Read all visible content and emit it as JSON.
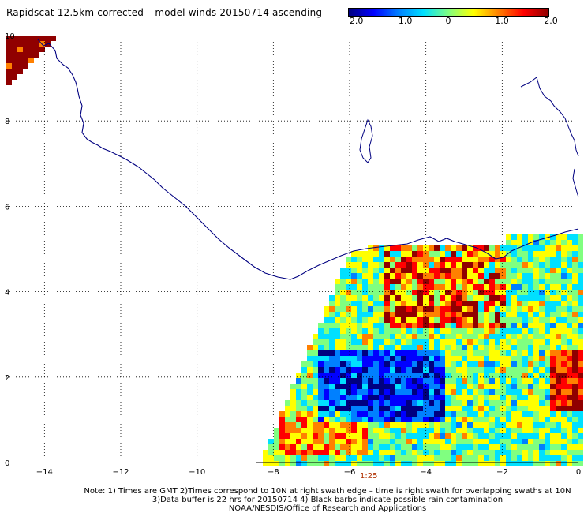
{
  "title": "Rapidscat 12.5km corrected – model winds 20150714 ascending",
  "colorbar": {
    "min": -2.0,
    "max": 2.0,
    "ticks": [
      "−2.0",
      "−1.0",
      "0",
      "1.0",
      "2.0"
    ],
    "colors": [
      "#000080",
      "#0000ff",
      "#0080ff",
      "#00e0ff",
      "#80ff80",
      "#ffff00",
      "#ff8000",
      "#ff0000",
      "#900000"
    ]
  },
  "axes": {
    "x_ticks": [
      "−14",
      "−12",
      "−10",
      "−8",
      "−6",
      "−4",
      "−2",
      "0"
    ],
    "y_ticks": [
      "10",
      "8",
      "6",
      "4",
      "2",
      "0"
    ],
    "x_range": [
      -15,
      0
    ],
    "y_range": [
      0,
      10
    ]
  },
  "time_label": "1:25",
  "notes": [
    "Note: 1) Times are GMT 2)Times correspond to 10N at right swath edge – time is right swath for overlapping swaths at 10N",
    "3)Data buffer is 22 hrs for 20150714 4) Black barbs indicate possible rain contamination",
    "NOAA/NESDIS/Office of Research and Applications"
  ],
  "colors": {
    "coastline": "#000080",
    "grid": "#000000"
  }
}
